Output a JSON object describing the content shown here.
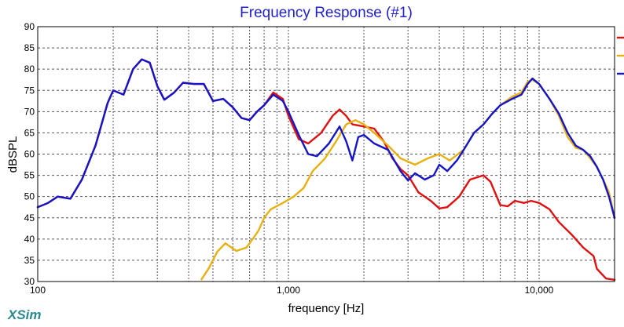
{
  "app": {
    "name": "XSim",
    "color": "#2a8a8f"
  },
  "chart_data": {
    "type": "line",
    "title": "Frequency Response (#1)",
    "xlabel": "frequency [Hz]",
    "ylabel": "dBSPL",
    "xscale": "log",
    "xlim": [
      100,
      20000
    ],
    "ylim": [
      30,
      90
    ],
    "yticks": [
      30,
      35,
      40,
      45,
      50,
      55,
      60,
      65,
      70,
      75,
      80,
      85,
      90
    ],
    "xtick_labels": [
      {
        "value": 100,
        "label": "100"
      },
      {
        "value": 1000,
        "label": "1,000"
      },
      {
        "value": 10000,
        "label": "10,000"
      }
    ],
    "grid": true,
    "legend": "right, unlabeled color swatches",
    "colors": {
      "title": "#2222cc",
      "axes": "#000000",
      "grid": "#555555"
    },
    "series": [
      {
        "color": "#e01010",
        "points": [
          [
            100,
            47.5
          ],
          [
            110,
            48.5
          ],
          [
            120,
            50
          ],
          [
            135,
            49.5
          ],
          [
            150,
            54
          ],
          [
            170,
            62
          ],
          [
            190,
            72
          ],
          [
            200,
            75
          ],
          [
            220,
            74
          ],
          [
            240,
            80
          ],
          [
            260,
            82.3
          ],
          [
            280,
            81.5
          ],
          [
            300,
            76
          ],
          [
            320,
            72.8
          ],
          [
            350,
            74.5
          ],
          [
            380,
            76.8
          ],
          [
            420,
            76.5
          ],
          [
            460,
            76.5
          ],
          [
            500,
            72.5
          ],
          [
            550,
            73
          ],
          [
            600,
            71
          ],
          [
            650,
            68.5
          ],
          [
            700,
            68
          ],
          [
            750,
            70
          ],
          [
            800,
            71.5
          ],
          [
            870,
            74.5
          ],
          [
            950,
            73
          ],
          [
            1000,
            69
          ],
          [
            1100,
            63.5
          ],
          [
            1200,
            62.5
          ],
          [
            1350,
            65
          ],
          [
            1500,
            69
          ],
          [
            1600,
            70.5
          ],
          [
            1700,
            69
          ],
          [
            1800,
            67
          ],
          [
            2000,
            66.5
          ],
          [
            2200,
            66
          ],
          [
            2400,
            63
          ],
          [
            2600,
            59
          ],
          [
            2800,
            56.5
          ],
          [
            3000,
            55
          ],
          [
            3300,
            51
          ],
          [
            3700,
            49
          ],
          [
            4000,
            47.2
          ],
          [
            4300,
            47.5
          ],
          [
            4800,
            50
          ],
          [
            5300,
            54
          ],
          [
            6000,
            55
          ],
          [
            6400,
            53.5
          ],
          [
            7000,
            48
          ],
          [
            7500,
            47.7
          ],
          [
            8000,
            49
          ],
          [
            8700,
            48.5
          ],
          [
            9300,
            49
          ],
          [
            10000,
            48.5
          ],
          [
            11000,
            47
          ],
          [
            12000,
            44
          ],
          [
            13500,
            41
          ],
          [
            15000,
            38
          ],
          [
            16500,
            36
          ],
          [
            17000,
            33
          ],
          [
            18500,
            30.7
          ],
          [
            20000,
            30.4
          ]
        ]
      },
      {
        "color": "#e8b010",
        "points": [
          [
            450,
            30.5
          ],
          [
            480,
            33
          ],
          [
            520,
            37
          ],
          [
            560,
            39
          ],
          [
            620,
            37.2
          ],
          [
            680,
            38
          ],
          [
            720,
            40
          ],
          [
            760,
            42
          ],
          [
            800,
            45
          ],
          [
            850,
            47
          ],
          [
            950,
            48.5
          ],
          [
            1050,
            50
          ],
          [
            1150,
            52
          ],
          [
            1250,
            56
          ],
          [
            1400,
            59
          ],
          [
            1550,
            63
          ],
          [
            1700,
            67
          ],
          [
            1850,
            68
          ],
          [
            2000,
            67
          ],
          [
            2200,
            65
          ],
          [
            2500,
            62
          ],
          [
            2800,
            59
          ],
          [
            3200,
            57.5
          ],
          [
            3600,
            59
          ],
          [
            4000,
            60
          ],
          [
            4400,
            58.5
          ],
          [
            5000,
            61
          ],
          [
            5500,
            65
          ],
          [
            6000,
            67
          ],
          [
            6500,
            69.5
          ],
          [
            7000,
            71.5
          ],
          [
            7800,
            73.5
          ],
          [
            8500,
            74.5
          ],
          [
            9000,
            77
          ],
          [
            9400,
            77.5
          ],
          [
            10000,
            76.5
          ],
          [
            11000,
            73
          ],
          [
            12000,
            69
          ],
          [
            13000,
            64
          ],
          [
            14000,
            61.5
          ],
          [
            15000,
            61
          ],
          [
            16000,
            59
          ],
          [
            17000,
            57
          ],
          [
            18000,
            54
          ],
          [
            19000,
            51
          ],
          [
            20000,
            45
          ]
        ]
      },
      {
        "color": "#1515c8",
        "points": [
          [
            100,
            47.5
          ],
          [
            110,
            48.5
          ],
          [
            120,
            50
          ],
          [
            135,
            49.5
          ],
          [
            150,
            54
          ],
          [
            170,
            62
          ],
          [
            190,
            72
          ],
          [
            200,
            75
          ],
          [
            220,
            74
          ],
          [
            240,
            80
          ],
          [
            260,
            82.3
          ],
          [
            280,
            81.5
          ],
          [
            300,
            76
          ],
          [
            320,
            72.8
          ],
          [
            350,
            74.5
          ],
          [
            380,
            76.8
          ],
          [
            420,
            76.5
          ],
          [
            460,
            76.5
          ],
          [
            500,
            72.5
          ],
          [
            550,
            73
          ],
          [
            600,
            71
          ],
          [
            650,
            68.5
          ],
          [
            700,
            68
          ],
          [
            750,
            70
          ],
          [
            800,
            71.5
          ],
          [
            870,
            74
          ],
          [
            950,
            72.5
          ],
          [
            1000,
            70
          ],
          [
            1100,
            64.5
          ],
          [
            1200,
            60
          ],
          [
            1300,
            59.5
          ],
          [
            1450,
            62.5
          ],
          [
            1600,
            66.5
          ],
          [
            1700,
            63
          ],
          [
            1800,
            58.5
          ],
          [
            1900,
            64
          ],
          [
            2000,
            64.5
          ],
          [
            2200,
            62.5
          ],
          [
            2500,
            61
          ],
          [
            2800,
            56
          ],
          [
            3000,
            53.8
          ],
          [
            3200,
            55.5
          ],
          [
            3500,
            54
          ],
          [
            3800,
            55
          ],
          [
            4000,
            57.5
          ],
          [
            4300,
            56
          ],
          [
            4700,
            58.5
          ],
          [
            5000,
            61
          ],
          [
            5500,
            65
          ],
          [
            6000,
            67
          ],
          [
            6500,
            69.5
          ],
          [
            7000,
            71.5
          ],
          [
            7800,
            73
          ],
          [
            8500,
            74
          ],
          [
            9000,
            76.5
          ],
          [
            9400,
            77.8
          ],
          [
            10000,
            76.5
          ],
          [
            11000,
            73
          ],
          [
            12000,
            69.5
          ],
          [
            13000,
            65
          ],
          [
            14000,
            62
          ],
          [
            15000,
            61
          ],
          [
            16000,
            59.5
          ],
          [
            17000,
            57
          ],
          [
            18000,
            54
          ],
          [
            19000,
            50
          ],
          [
            20000,
            45
          ]
        ]
      }
    ]
  }
}
